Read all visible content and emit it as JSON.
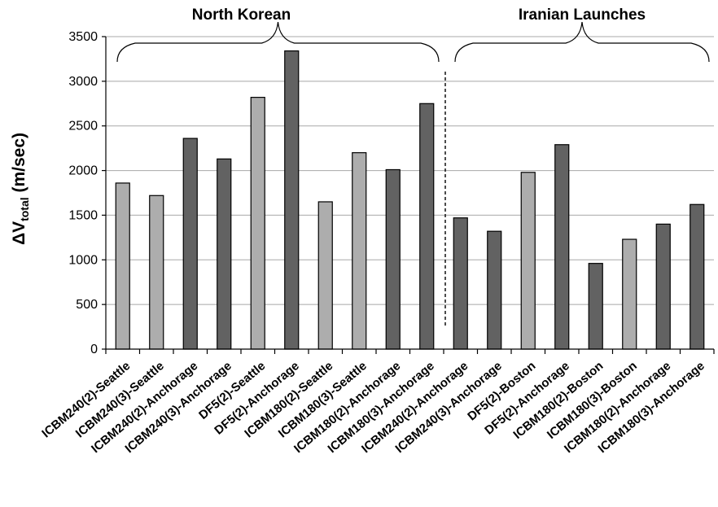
{
  "chart_data": {
    "type": "bar",
    "ylabel": {
      "main": "ΔV",
      "sub": "total",
      "suffix": " (m/sec)"
    },
    "ylim": [
      0,
      3500
    ],
    "yticks": [
      0,
      500,
      1000,
      1500,
      2000,
      2500,
      3000,
      3500
    ],
    "grid": true,
    "categories": [
      "ICBM240(2)-Seattle",
      "ICBM240(3)-Seattle",
      "ICBM240(2)-Anchorage",
      "ICBM240(3)-Anchorage",
      "DF5(2)-Seattle",
      "DF5(2)-Anchorage",
      "ICBM180(2)-Seattle",
      "ICBM180(3)-Seattle",
      "ICBM180(2)-Anchorage",
      "ICBM180(3)-Anchorage",
      "ICBM240(2)-Anchorage",
      "ICBM240(3)-Anchorage",
      "DF5(2)-Boston",
      "DF5(2)-Anchorage",
      "ICBM180(2)-Boston",
      "ICBM180(3)-Boston",
      "ICBM180(2)-Anchorage",
      "ICBM180(3)-Anchorage"
    ],
    "values": [
      1860,
      1720,
      2360,
      2130,
      2820,
      3340,
      1650,
      2200,
      2010,
      2750,
      1470,
      1320,
      1980,
      2290,
      960,
      1230,
      1400,
      1620
    ],
    "bar_colors": [
      "#adadad",
      "#adadad",
      "#626262",
      "#626262",
      "#adadad",
      "#626262",
      "#adadad",
      "#adadad",
      "#626262",
      "#626262",
      "#626262",
      "#626262",
      "#adadad",
      "#626262",
      "#626262",
      "#adadad",
      "#626262",
      "#626262"
    ],
    "groups": [
      {
        "label": "North Korean",
        "categories": [
          0,
          9
        ]
      },
      {
        "label": "Iranian Launches",
        "categories": [
          10,
          17
        ]
      }
    ]
  }
}
